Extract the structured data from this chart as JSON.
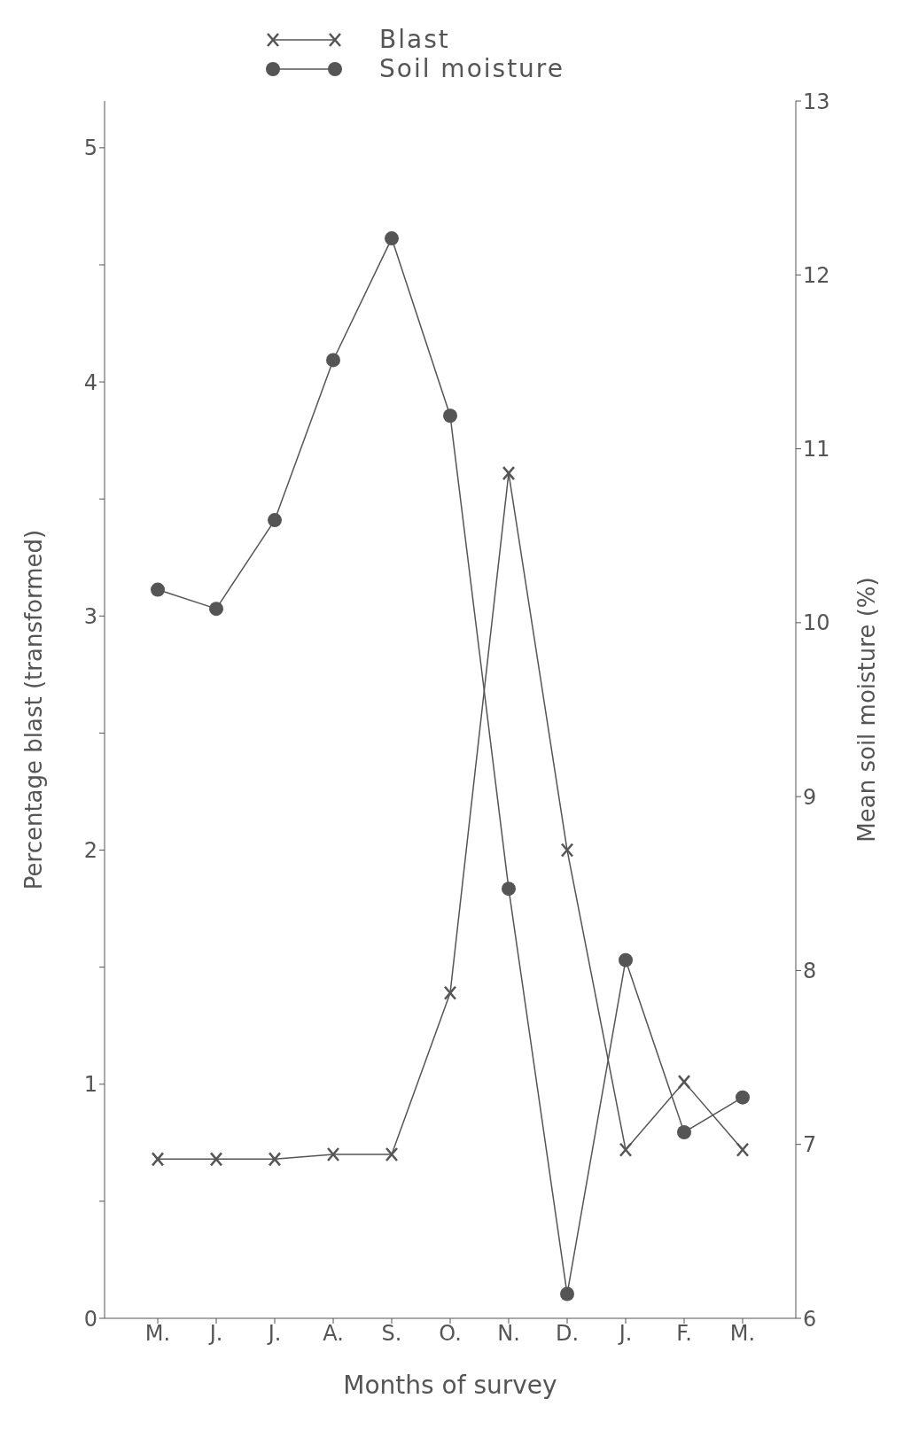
{
  "chart_data": {
    "type": "line",
    "categories": [
      "M.",
      "J.",
      "J.",
      "A.",
      "S.",
      "O.",
      "N.",
      "D.",
      "J.",
      "F.",
      "M."
    ],
    "series": [
      {
        "name": "Blast",
        "color": "#555555",
        "marker": "cross",
        "values": [
          0.68,
          0.68,
          0.68,
          0.7,
          0.7,
          1.39,
          3.61,
          2.0,
          0.72,
          1.01,
          0.72
        ]
      },
      {
        "name": "Soil moisture",
        "color": "#555555",
        "marker": "circle",
        "axis": "y2",
        "values": [
          10.19,
          10.08,
          10.59,
          11.51,
          12.21,
          11.19,
          8.47,
          6.14,
          8.06,
          7.07,
          7.27
        ]
      }
    ],
    "xlabel": "Months of survey",
    "ylabel": "Percentage blast (transformed)",
    "y2label": "Mean soil moisture (%)",
    "ylim": [
      0,
      5.2
    ],
    "yticks": [
      0,
      {
        "value": 0.5,
        "label": null
      },
      1,
      {
        "value": 1.5,
        "label": null
      },
      2,
      {
        "value": 2.5,
        "label": null
      },
      3,
      {
        "value": 3.5,
        "label": null
      },
      4,
      {
        "value": 4.5,
        "label": null
      },
      5
    ],
    "y2lim": [
      6,
      13
    ],
    "y2ticks": [
      6,
      7,
      8,
      9,
      10,
      11,
      12,
      13
    ],
    "legend": "top",
    "grid": false,
    "line_style": "solid"
  }
}
